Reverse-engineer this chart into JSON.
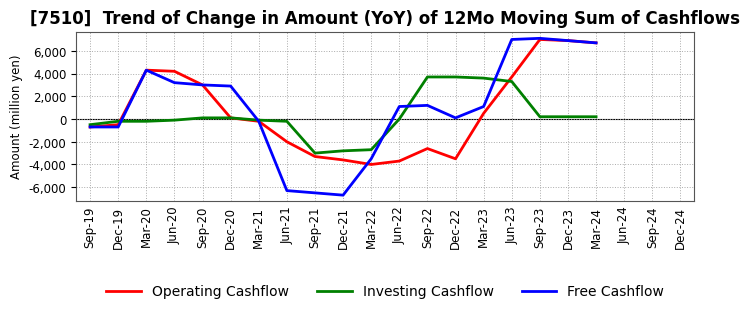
{
  "title": "[7510]  Trend of Change in Amount (YoY) of 12Mo Moving Sum of Cashflows",
  "ylabel": "Amount (million yen)",
  "x_labels": [
    "Sep-19",
    "Dec-19",
    "Mar-20",
    "Jun-20",
    "Sep-20",
    "Dec-20",
    "Mar-21",
    "Jun-21",
    "Sep-21",
    "Dec-21",
    "Mar-22",
    "Jun-22",
    "Sep-22",
    "Dec-22",
    "Mar-23",
    "Jun-23",
    "Sep-23",
    "Dec-23",
    "Mar-24",
    "Jun-24",
    "Sep-24",
    "Dec-24"
  ],
  "operating_cashflow": [
    -700,
    -500,
    4300,
    4200,
    3000,
    100,
    -200,
    -2000,
    -3300,
    -3600,
    -4000,
    -3700,
    -2600,
    -3500,
    500,
    3700,
    7000,
    6900,
    6700,
    null,
    null,
    null
  ],
  "investing_cashflow": [
    -500,
    -200,
    -200,
    -100,
    100,
    100,
    -100,
    -200,
    -3000,
    -2800,
    -2700,
    0,
    3700,
    3700,
    3600,
    3300,
    200,
    200,
    200,
    null,
    null,
    null
  ],
  "free_cashflow": [
    -700,
    -700,
    4300,
    3200,
    3000,
    2900,
    -200,
    -6300,
    -6500,
    -6700,
    -3500,
    1100,
    1200,
    100,
    1100,
    7000,
    7100,
    6900,
    6700,
    null,
    null,
    null
  ],
  "operating_color": "#ff0000",
  "investing_color": "#008000",
  "free_color": "#0000ff",
  "ylim": [
    -7200,
    7700
  ],
  "yticks": [
    -6000,
    -4000,
    -2000,
    0,
    2000,
    4000,
    6000
  ],
  "background_color": "#ffffff",
  "grid_color": "#aaaaaa",
  "line_width": 2.0,
  "title_fontsize": 12,
  "legend_fontsize": 10,
  "axis_fontsize": 8.5
}
